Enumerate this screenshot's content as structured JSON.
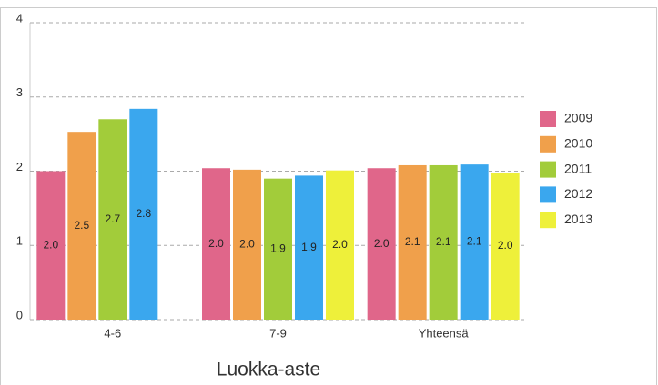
{
  "chart_data": {
    "type": "bar",
    "x_label": "Luokka-aste",
    "categories": [
      "4-6",
      "7-9",
      "Yhteensä"
    ],
    "series": [
      {
        "name": "2009",
        "color": "#e0668a",
        "values": [
          2.0,
          2.04,
          2.04
        ],
        "value_labels": [
          "2.0",
          "2.0",
          "2.0"
        ]
      },
      {
        "name": "2010",
        "color": "#f0a04b",
        "values": [
          2.53,
          2.02,
          2.08
        ],
        "value_labels": [
          "2.5",
          "2.0",
          "2.1"
        ]
      },
      {
        "name": "2011",
        "color": "#a2cc3a",
        "values": [
          2.7,
          1.9,
          2.08
        ],
        "value_labels": [
          "2.7",
          "1.9",
          "2.1"
        ]
      },
      {
        "name": "2012",
        "color": "#3aa7ee",
        "values": [
          2.84,
          1.94,
          2.09
        ],
        "value_labels": [
          "2.8",
          "1.9",
          "2.1"
        ]
      },
      {
        "name": "2013",
        "color": "#eef03a",
        "values": [
          null,
          2.01,
          1.98
        ],
        "value_labels": [
          null,
          "2.0",
          "2.0"
        ]
      }
    ],
    "ylim": [
      0,
      4
    ],
    "yticks": [
      0,
      1,
      2,
      3,
      4
    ],
    "grid": true,
    "legend": "right"
  }
}
